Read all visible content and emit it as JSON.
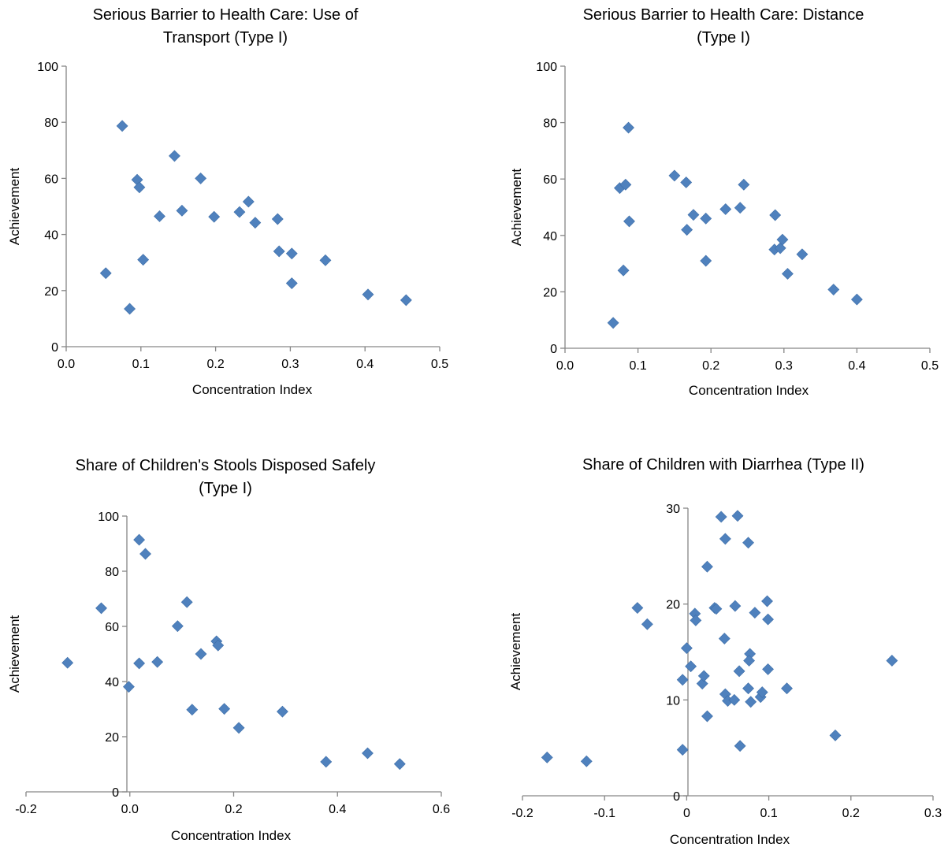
{
  "chart_data": [
    {
      "type": "scatter",
      "title_lines": [
        "Serious  Barrier to Health Care: Use of",
        "Transport (Type I)"
      ],
      "xlabel": "Concentration Index",
      "ylabel": "Achievement",
      "xlim": [
        0.0,
        0.5
      ],
      "ylim": [
        0,
        100
      ],
      "xticks": [
        "0.0",
        "0.1",
        "0.2",
        "0.3",
        "0.4",
        "0.5"
      ],
      "yticks": [
        "0",
        "20",
        "40",
        "60",
        "80",
        "100"
      ],
      "grid": false,
      "legend": "none",
      "marker_color": "#4f81bd",
      "points": [
        [
          0.075,
          78.7
        ],
        [
          0.145,
          68.0
        ],
        [
          0.095,
          59.5
        ],
        [
          0.098,
          56.8
        ],
        [
          0.18,
          60.0
        ],
        [
          0.125,
          46.5
        ],
        [
          0.155,
          48.5
        ],
        [
          0.198,
          46.3
        ],
        [
          0.232,
          48.0
        ],
        [
          0.244,
          51.7
        ],
        [
          0.253,
          44.2
        ],
        [
          0.283,
          45.5
        ],
        [
          0.103,
          31.0
        ],
        [
          0.053,
          26.2
        ],
        [
          0.085,
          13.5
        ],
        [
          0.285,
          34.0
        ],
        [
          0.302,
          33.2
        ],
        [
          0.347,
          30.8
        ],
        [
          0.302,
          22.6
        ],
        [
          0.404,
          18.6
        ],
        [
          0.455,
          16.6
        ]
      ]
    },
    {
      "type": "scatter",
      "title_lines": [
        "Serious Barrier to Health Care: Distance",
        "(Type I)"
      ],
      "xlabel": "Concentration Index",
      "ylabel": "Achievement",
      "xlim": [
        0.0,
        0.5
      ],
      "ylim": [
        0,
        100
      ],
      "xticks": [
        "0.0",
        "0.1",
        "0.2",
        "0.3",
        "0.4",
        "0.5"
      ],
      "yticks": [
        "0",
        "20",
        "40",
        "60",
        "80",
        "100"
      ],
      "grid": false,
      "legend": "none",
      "marker_color": "#4f81bd",
      "points": [
        [
          0.087,
          78.2
        ],
        [
          0.075,
          56.8
        ],
        [
          0.083,
          58.0
        ],
        [
          0.088,
          45.0
        ],
        [
          0.08,
          27.6
        ],
        [
          0.066,
          9.0
        ],
        [
          0.15,
          61.2
        ],
        [
          0.166,
          58.8
        ],
        [
          0.167,
          42.0
        ],
        [
          0.176,
          47.3
        ],
        [
          0.193,
          46.0
        ],
        [
          0.193,
          31.0
        ],
        [
          0.22,
          49.3
        ],
        [
          0.24,
          49.8
        ],
        [
          0.245,
          58.0
        ],
        [
          0.288,
          47.2
        ],
        [
          0.287,
          35.0
        ],
        [
          0.295,
          35.5
        ],
        [
          0.298,
          38.5
        ],
        [
          0.305,
          26.4
        ],
        [
          0.325,
          33.3
        ],
        [
          0.368,
          20.8
        ],
        [
          0.4,
          17.3
        ]
      ]
    },
    {
      "type": "scatter",
      "title_lines": [
        "Share of Children's  Stools Disposed Safely",
        "(Type I)"
      ],
      "xlabel": "Concentration Index",
      "ylabel": "Achievement",
      "xlim": [
        -0.2,
        0.6
      ],
      "ylim": [
        0,
        100
      ],
      "xticks": [
        "-0.2",
        "0.0",
        "0.2",
        "0.4",
        "0.6"
      ],
      "yticks": [
        "0",
        "20",
        "40",
        "60",
        "80",
        "100"
      ],
      "grid": false,
      "legend": "none",
      "marker_color": "#4f81bd",
      "points": [
        [
          -0.12,
          46.8
        ],
        [
          -0.055,
          66.6
        ],
        [
          -0.002,
          38.1
        ],
        [
          0.018,
          91.4
        ],
        [
          0.03,
          86.3
        ],
        [
          0.018,
          46.6
        ],
        [
          0.053,
          47.1
        ],
        [
          0.092,
          60.1
        ],
        [
          0.11,
          68.8
        ],
        [
          0.137,
          50.0
        ],
        [
          0.167,
          54.6
        ],
        [
          0.17,
          53.1
        ],
        [
          0.12,
          29.8
        ],
        [
          0.182,
          30.1
        ],
        [
          0.21,
          23.2
        ],
        [
          0.294,
          29.1
        ],
        [
          0.378,
          10.9
        ],
        [
          0.458,
          14.0
        ],
        [
          0.52,
          10.1
        ]
      ]
    },
    {
      "type": "scatter",
      "title_lines": [
        "Share of Children with Diarrhea (Type II)"
      ],
      "xlabel": "Concentration  Index",
      "ylabel": "Achievement",
      "xlim": [
        -0.2,
        0.3
      ],
      "ylim": [
        0,
        30
      ],
      "xticks": [
        "-0.2",
        "-0.1",
        "0",
        "0.1",
        "0.2",
        "0.3"
      ],
      "yticks": [
        "0",
        "10",
        "20",
        "30"
      ],
      "grid": false,
      "legend": "none",
      "marker_color": "#4f81bd",
      "points": [
        [
          -0.17,
          4.0
        ],
        [
          -0.122,
          3.6
        ],
        [
          -0.06,
          19.6
        ],
        [
          -0.048,
          17.9
        ],
        [
          -0.005,
          4.8
        ],
        [
          -0.005,
          12.1
        ],
        [
          0.0,
          15.4
        ],
        [
          0.005,
          13.5
        ],
        [
          0.01,
          19.0
        ],
        [
          0.011,
          18.3
        ],
        [
          0.019,
          11.7
        ],
        [
          0.021,
          12.5
        ],
        [
          0.025,
          23.9
        ],
        [
          0.025,
          8.3
        ],
        [
          0.034,
          19.6
        ],
        [
          0.036,
          19.5
        ],
        [
          0.042,
          29.1
        ],
        [
          0.046,
          16.4
        ],
        [
          0.047,
          26.8
        ],
        [
          0.047,
          10.6
        ],
        [
          0.05,
          9.9
        ],
        [
          0.058,
          10.0
        ],
        [
          0.059,
          19.8
        ],
        [
          0.062,
          29.2
        ],
        [
          0.064,
          13.0
        ],
        [
          0.065,
          5.2
        ],
        [
          0.075,
          26.4
        ],
        [
          0.075,
          11.2
        ],
        [
          0.077,
          14.8
        ],
        [
          0.076,
          14.1
        ],
        [
          0.078,
          9.8
        ],
        [
          0.083,
          19.1
        ],
        [
          0.09,
          10.3
        ],
        [
          0.092,
          10.8
        ],
        [
          0.098,
          20.3
        ],
        [
          0.099,
          18.4
        ],
        [
          0.099,
          13.2
        ],
        [
          0.122,
          11.2
        ],
        [
          0.181,
          6.3
        ],
        [
          0.25,
          14.1
        ]
      ]
    }
  ]
}
